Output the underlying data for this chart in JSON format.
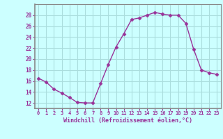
{
  "x": [
    0,
    1,
    2,
    3,
    4,
    5,
    6,
    7,
    8,
    9,
    10,
    11,
    12,
    13,
    14,
    15,
    16,
    17,
    18,
    19,
    20,
    21,
    22,
    23
  ],
  "y": [
    16.5,
    15.8,
    14.5,
    13.8,
    13.0,
    12.1,
    12.0,
    12.0,
    15.5,
    19.0,
    22.2,
    24.6,
    27.2,
    27.5,
    28.0,
    28.5,
    28.2,
    28.0,
    28.0,
    26.5,
    21.8,
    18.0,
    17.5,
    17.2
  ],
  "line_color": "#993399",
  "marker": "D",
  "marker_size": 2.5,
  "bg_color": "#ccffff",
  "grid_color": "#aadddd",
  "xlabel": "Windchill (Refroidissement éolien,°C)",
  "xlabel_color": "#993399",
  "tick_color": "#993399",
  "ylim": [
    11,
    30
  ],
  "xlim": [
    -0.5,
    23.5
  ],
  "yticks": [
    12,
    14,
    16,
    18,
    20,
    22,
    24,
    26,
    28
  ],
  "xticks": [
    0,
    1,
    2,
    3,
    4,
    5,
    6,
    7,
    8,
    9,
    10,
    11,
    12,
    13,
    14,
    15,
    16,
    17,
    18,
    19,
    20,
    21,
    22,
    23
  ],
  "xtick_labels": [
    "0",
    "1",
    "2",
    "3",
    "4",
    "5",
    "6",
    "7",
    "8",
    "9",
    "10",
    "11",
    "12",
    "13",
    "14",
    "15",
    "16",
    "17",
    "18",
    "19",
    "20",
    "21",
    "22",
    "23"
  ],
  "spine_color": "#888888"
}
